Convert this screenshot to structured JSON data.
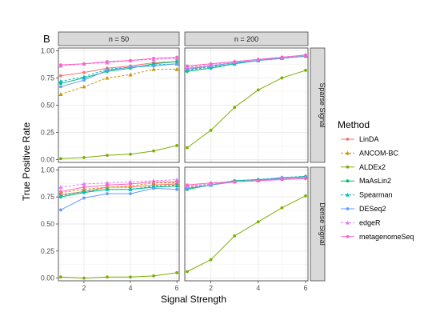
{
  "panel_tag": "B",
  "chart_data": {
    "type": "line",
    "xlabel": "Signal Strength",
    "ylabel": "True Positive Rate",
    "xlim": [
      0.9,
      6.1
    ],
    "ylim": [
      0,
      1
    ],
    "x": [
      1,
      2,
      3,
      4,
      5,
      6
    ],
    "x_ticks": [
      "2",
      "4",
      "6"
    ],
    "y_ticks": [
      "0.00",
      "0.25",
      "0.50",
      "0.75",
      "1.00"
    ],
    "columns": [
      "n = 50",
      "n = 200"
    ],
    "rows": [
      "Sparse Signal",
      "Dense Signal"
    ],
    "grid": true,
    "legend": {
      "title": "Method",
      "position": "right"
    },
    "methods": [
      {
        "name": "LinDA",
        "color": "#F8766D",
        "dash": false,
        "shape": "circle"
      },
      {
        "name": "ANCOM-BC",
        "color": "#CD9600",
        "dash": true,
        "shape": "triangle"
      },
      {
        "name": "ALDEx2",
        "color": "#7CAE00",
        "dash": false,
        "shape": "circle"
      },
      {
        "name": "MaAsLin2",
        "color": "#00BE67",
        "dash": false,
        "shape": "circle"
      },
      {
        "name": "Spearman",
        "color": "#00BFC4",
        "dash": true,
        "shape": "triangle"
      },
      {
        "name": "DESeq2",
        "color": "#619CFF",
        "dash": false,
        "shape": "circle"
      },
      {
        "name": "edgeR",
        "color": "#E07BFF",
        "dash": true,
        "shape": "triangle"
      },
      {
        "name": "metagenomeSeq",
        "color": "#FF61C3",
        "dash": false,
        "shape": "circle"
      }
    ],
    "panels": [
      {
        "col": 0,
        "row": 0,
        "series": {
          "LinDA": [
            0.77,
            0.8,
            0.84,
            0.86,
            0.89,
            0.9
          ],
          "ANCOM-BC": [
            0.6,
            0.67,
            0.75,
            0.78,
            0.83,
            0.83
          ],
          "ALDEx2": [
            0.01,
            0.02,
            0.04,
            0.05,
            0.08,
            0.13
          ],
          "MaAsLin2": [
            0.7,
            0.75,
            0.81,
            0.84,
            0.88,
            0.9
          ],
          "Spearman": [
            0.72,
            0.76,
            0.83,
            0.85,
            0.87,
            0.88
          ],
          "DESeq2": [
            0.67,
            0.73,
            0.82,
            0.85,
            0.86,
            0.88
          ],
          "edgeR": [
            0.86,
            0.88,
            0.89,
            0.91,
            0.92,
            0.93
          ],
          "metagenomeSeq": [
            0.87,
            0.88,
            0.9,
            0.91,
            0.93,
            0.94
          ]
        }
      },
      {
        "col": 1,
        "row": 0,
        "series": {
          "LinDA": [
            0.84,
            0.86,
            0.89,
            0.91,
            0.94,
            0.96
          ],
          "ANCOM-BC": [
            0.83,
            0.85,
            0.88,
            0.91,
            0.93,
            0.95
          ],
          "ALDEx2": [
            0.11,
            0.27,
            0.48,
            0.64,
            0.75,
            0.82
          ],
          "MaAsLin2": [
            0.81,
            0.84,
            0.88,
            0.91,
            0.93,
            0.95
          ],
          "Spearman": [
            0.82,
            0.85,
            0.88,
            0.91,
            0.94,
            0.96
          ],
          "DESeq2": [
            0.83,
            0.86,
            0.89,
            0.91,
            0.93,
            0.95
          ],
          "edgeR": [
            0.85,
            0.87,
            0.9,
            0.92,
            0.94,
            0.96
          ],
          "metagenomeSeq": [
            0.86,
            0.88,
            0.9,
            0.92,
            0.94,
            0.96
          ]
        }
      },
      {
        "col": 0,
        "row": 1,
        "series": {
          "LinDA": [
            0.77,
            0.8,
            0.84,
            0.84,
            0.86,
            0.87
          ],
          "ANCOM-BC": [
            0.79,
            0.82,
            0.84,
            0.85,
            0.88,
            0.88
          ],
          "ALDEx2": [
            0.01,
            0.0,
            0.01,
            0.01,
            0.02,
            0.05
          ],
          "MaAsLin2": [
            0.75,
            0.79,
            0.82,
            0.82,
            0.84,
            0.85
          ],
          "Spearman": [
            0.76,
            0.8,
            0.82,
            0.82,
            0.85,
            0.86
          ],
          "DESeq2": [
            0.63,
            0.74,
            0.78,
            0.78,
            0.83,
            0.82
          ],
          "edgeR": [
            0.84,
            0.87,
            0.88,
            0.89,
            0.9,
            0.91
          ],
          "metagenomeSeq": [
            0.8,
            0.84,
            0.86,
            0.87,
            0.89,
            0.89
          ]
        }
      },
      {
        "col": 1,
        "row": 1,
        "series": {
          "LinDA": [
            0.83,
            0.86,
            0.89,
            0.9,
            0.92,
            0.93
          ],
          "ANCOM-BC": [
            0.84,
            0.87,
            0.9,
            0.91,
            0.93,
            0.94
          ],
          "ALDEx2": [
            0.06,
            0.17,
            0.39,
            0.52,
            0.65,
            0.76
          ],
          "MaAsLin2": [
            0.82,
            0.86,
            0.9,
            0.91,
            0.92,
            0.94
          ],
          "Spearman": [
            0.83,
            0.86,
            0.9,
            0.91,
            0.93,
            0.94
          ],
          "DESeq2": [
            0.83,
            0.86,
            0.89,
            0.9,
            0.93,
            0.93
          ],
          "edgeR": [
            0.85,
            0.87,
            0.89,
            0.9,
            0.92,
            0.93
          ],
          "metagenomeSeq": [
            0.86,
            0.88,
            0.89,
            0.9,
            0.91,
            0.92
          ]
        }
      }
    ]
  }
}
